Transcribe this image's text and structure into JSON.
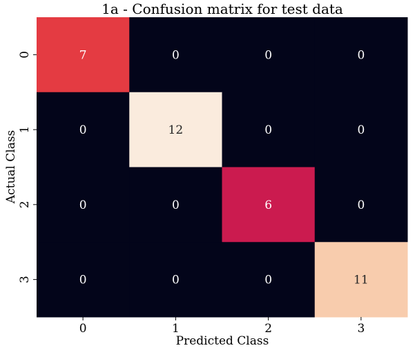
{
  "chart_data": {
    "type": "heatmap",
    "title": "1a - Confusion matrix for test data",
    "xlabel": "Predicted Class",
    "ylabel": "Actual Class",
    "x_categories": [
      "0",
      "1",
      "2",
      "3"
    ],
    "y_categories": [
      "0",
      "1",
      "2",
      "3"
    ],
    "values": [
      [
        7,
        0,
        0,
        0
      ],
      [
        0,
        12,
        0,
        0
      ],
      [
        0,
        0,
        6,
        0
      ],
      [
        0,
        0,
        0,
        11
      ]
    ],
    "vmin": 0,
    "vmax": 12,
    "colorbar": false,
    "annotations": true
  }
}
